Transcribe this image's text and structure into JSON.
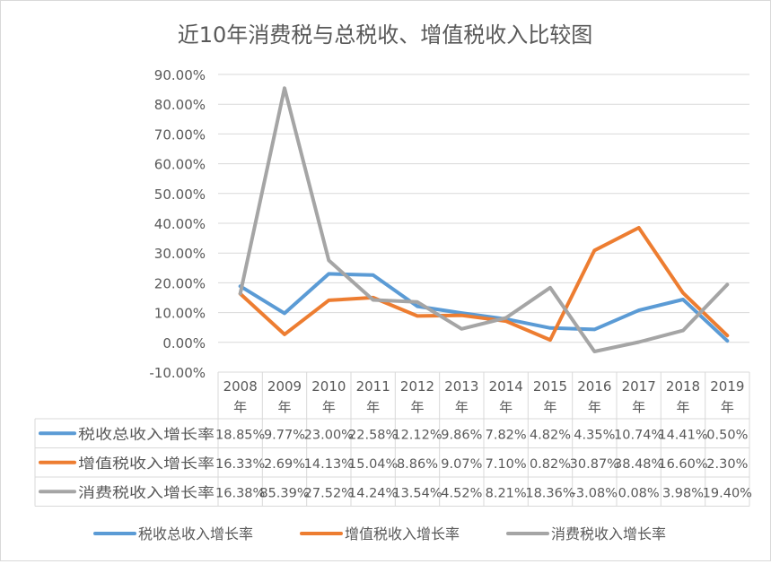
{
  "chart_data": {
    "type": "line",
    "title": "近10年消费税与总税收、增值税收入比较图",
    "categories": [
      "2008年",
      "2009年",
      "2010年",
      "2011年",
      "2012年",
      "2013年",
      "2014年",
      "2015年",
      "2016年",
      "2017年",
      "2018年",
      "2019年"
    ],
    "category_years": [
      "2008",
      "2009",
      "2010",
      "2011",
      "2012",
      "2013",
      "2014",
      "2015",
      "2016",
      "2017",
      "2018",
      "2019"
    ],
    "category_suffix": "年",
    "y_ticks": [
      "90.00%",
      "80.00%",
      "70.00%",
      "60.00%",
      "50.00%",
      "40.00%",
      "30.00%",
      "20.00%",
      "10.00%",
      "0.00%",
      "-10.00%"
    ],
    "ylim": [
      -10,
      90
    ],
    "grid": true,
    "legend_position": "bottom",
    "series": [
      {
        "name": "税收总收入增长率",
        "color": "#5B9BD5",
        "values": [
          18.85,
          9.77,
          23.0,
          22.58,
          12.12,
          9.86,
          7.82,
          4.82,
          4.35,
          10.74,
          14.41,
          0.5
        ],
        "labels": [
          "18.85%",
          "9.77%",
          "23.00%",
          "22.58%",
          "12.12%",
          "9.86%",
          "7.82%",
          "4.82%",
          "4.35%",
          "10.74%",
          "14.41%",
          "0.50%"
        ]
      },
      {
        "name": "增值税收入增长率",
        "color": "#ED7D31",
        "values": [
          16.33,
          2.69,
          14.13,
          15.04,
          8.86,
          9.07,
          7.1,
          0.82,
          30.87,
          38.48,
          16.6,
          2.3
        ],
        "labels": [
          "16.33%",
          "2.69%",
          "14.13%",
          "15.04%",
          "8.86%",
          "9.07%",
          "7.10%",
          "0.82%",
          "30.87%",
          "38.48%",
          "16.60%",
          "2.30%"
        ]
      },
      {
        "name": "消费税收入增长率",
        "color": "#A5A5A5",
        "values": [
          16.38,
          85.39,
          27.52,
          14.24,
          13.54,
          4.52,
          8.21,
          18.36,
          -3.08,
          0.08,
          3.98,
          19.4
        ],
        "labels": [
          "16.38%",
          "85.39%",
          "27.52%",
          "14.24%",
          "13.54%",
          "4.52%",
          "8.21%",
          "18.36%",
          "-3.08%",
          "0.08%",
          "3.98%",
          "19.40%"
        ]
      }
    ]
  }
}
